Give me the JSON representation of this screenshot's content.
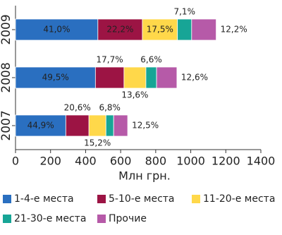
{
  "chart_data": {
    "type": "stacked-bar-horizontal",
    "x_label": "Млн грн.",
    "categories": [
      "2009",
      "2008",
      "2007"
    ],
    "series": [
      {
        "name": "1-4-е места",
        "color": "#2a6fc0",
        "values": [
          470,
          456,
          287
        ],
        "share_labels": [
          "41,0%",
          "49,5%",
          "44,9%"
        ]
      },
      {
        "name": "5-10-е места",
        "color": "#9c1444",
        "values": [
          254,
          163,
          132
        ],
        "share_labels": [
          "22,2%",
          "17,7%",
          "20,6%"
        ]
      },
      {
        "name": "11-20-е места",
        "color": "#ffd84a",
        "values": [
          200,
          125,
          97
        ],
        "share_labels": [
          "17,5%",
          "13,6%",
          "15,2%"
        ]
      },
      {
        "name": "21-30-е места",
        "color": "#17a596",
        "values": [
          81,
          61,
          44
        ],
        "share_labels": [
          "7,1%",
          "6,6%",
          "6,8%"
        ]
      },
      {
        "name": "Прочие",
        "color": "#b65aa8",
        "values": [
          140,
          116,
          80
        ],
        "share_labels": [
          "12,2%",
          "12,6%",
          "12,5%"
        ]
      }
    ],
    "xlim": [
      0,
      1400
    ],
    "xticks": [
      0,
      200,
      400,
      600,
      800,
      1000,
      1200,
      1400
    ]
  }
}
